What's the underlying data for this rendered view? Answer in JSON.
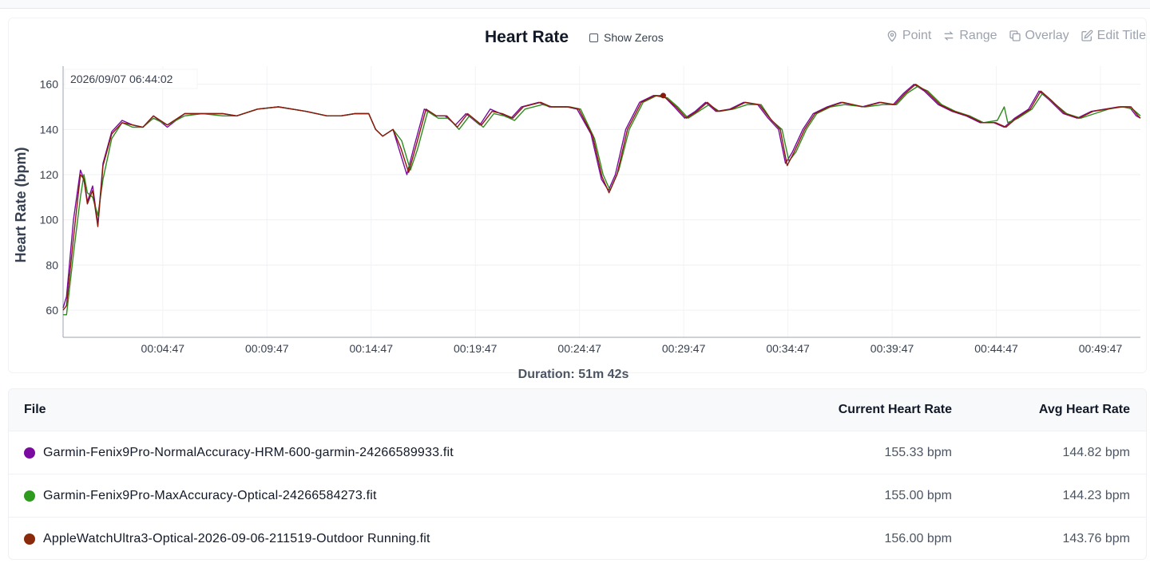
{
  "chart": {
    "title": "Heart Rate",
    "show_zeros_label": "Show Zeros",
    "tools": [
      {
        "label": "Point",
        "icon": "map-pin-icon"
      },
      {
        "label": "Range",
        "icon": "arrows-swap-icon"
      },
      {
        "label": "Overlay",
        "icon": "copy-icon"
      },
      {
        "label": "Edit Title",
        "icon": "pencil-edit-icon"
      }
    ],
    "tooltip": "2026/09/07 06:44:02",
    "duration": "Duration: 51m 42s"
  },
  "chart_data": {
    "type": "line",
    "ylabel": "Heart Rate (bpm)",
    "xlabel": "",
    "ylim": [
      48,
      168
    ],
    "xlim": [
      0,
      3102
    ],
    "yticks": [
      60,
      80,
      100,
      120,
      140,
      160
    ],
    "xticks": [
      {
        "t": 287,
        "label": "00:04:47"
      },
      {
        "t": 587,
        "label": "00:09:47"
      },
      {
        "t": 887,
        "label": "00:14:47"
      },
      {
        "t": 1187,
        "label": "00:19:47"
      },
      {
        "t": 1487,
        "label": "00:24:47"
      },
      {
        "t": 1787,
        "label": "00:29:47"
      },
      {
        "t": 2087,
        "label": "00:34:47"
      },
      {
        "t": 2387,
        "label": "00:39:47"
      },
      {
        "t": 2687,
        "label": "00:44:47"
      },
      {
        "t": 2987,
        "label": "00:49:47"
      }
    ],
    "marker": {
      "t": 1728,
      "y": 155
    },
    "series": [
      {
        "color": "#7a0aa0",
        "points": [
          [
            0,
            61
          ],
          [
            10,
            66
          ],
          [
            30,
            100
          ],
          [
            50,
            122
          ],
          [
            60,
            118
          ],
          [
            70,
            108
          ],
          [
            85,
            115
          ],
          [
            100,
            98
          ],
          [
            115,
            125
          ],
          [
            140,
            139
          ],
          [
            170,
            144
          ],
          [
            200,
            142
          ],
          [
            230,
            141
          ],
          [
            260,
            146
          ],
          [
            300,
            141
          ],
          [
            350,
            147
          ],
          [
            400,
            147
          ],
          [
            460,
            147
          ],
          [
            500,
            146
          ],
          [
            560,
            149
          ],
          [
            620,
            150
          ],
          [
            700,
            148
          ],
          [
            760,
            146
          ],
          [
            800,
            146
          ],
          [
            840,
            147
          ],
          [
            880,
            147
          ],
          [
            900,
            140
          ],
          [
            920,
            137
          ],
          [
            950,
            140
          ],
          [
            970,
            130
          ],
          [
            990,
            120
          ],
          [
            1010,
            132
          ],
          [
            1040,
            149
          ],
          [
            1070,
            146
          ],
          [
            1100,
            146
          ],
          [
            1130,
            142
          ],
          [
            1160,
            147
          ],
          [
            1200,
            142
          ],
          [
            1230,
            149
          ],
          [
            1260,
            147
          ],
          [
            1290,
            145
          ],
          [
            1320,
            150
          ],
          [
            1370,
            152
          ],
          [
            1400,
            150
          ],
          [
            1450,
            150
          ],
          [
            1480,
            149
          ],
          [
            1520,
            138
          ],
          [
            1550,
            118
          ],
          [
            1570,
            113
          ],
          [
            1590,
            120
          ],
          [
            1620,
            140
          ],
          [
            1660,
            152
          ],
          [
            1700,
            155
          ],
          [
            1728,
            155
          ],
          [
            1760,
            150
          ],
          [
            1790,
            145
          ],
          [
            1820,
            148
          ],
          [
            1850,
            152
          ],
          [
            1880,
            148
          ],
          [
            1920,
            149
          ],
          [
            1960,
            152
          ],
          [
            2000,
            151
          ],
          [
            2030,
            145
          ],
          [
            2060,
            140
          ],
          [
            2080,
            125
          ],
          [
            2100,
            130
          ],
          [
            2130,
            140
          ],
          [
            2160,
            147
          ],
          [
            2200,
            150
          ],
          [
            2240,
            152
          ],
          [
            2300,
            150
          ],
          [
            2350,
            152
          ],
          [
            2390,
            151
          ],
          [
            2420,
            156
          ],
          [
            2450,
            160
          ],
          [
            2480,
            157
          ],
          [
            2520,
            151
          ],
          [
            2560,
            148
          ],
          [
            2600,
            146
          ],
          [
            2640,
            143
          ],
          [
            2680,
            143
          ],
          [
            2710,
            141
          ],
          [
            2740,
            145
          ],
          [
            2780,
            149
          ],
          [
            2810,
            157
          ],
          [
            2840,
            153
          ],
          [
            2880,
            147
          ],
          [
            2920,
            145
          ],
          [
            2960,
            148
          ],
          [
            3000,
            149
          ],
          [
            3040,
            150
          ],
          [
            3070,
            150
          ],
          [
            3090,
            146
          ],
          [
            3102,
            145
          ]
        ]
      },
      {
        "color": "#2e8b1e",
        "points": [
          [
            0,
            58
          ],
          [
            10,
            58
          ],
          [
            30,
            85
          ],
          [
            50,
            110
          ],
          [
            60,
            120
          ],
          [
            70,
            112
          ],
          [
            85,
            110
          ],
          [
            100,
            102
          ],
          [
            115,
            118
          ],
          [
            140,
            136
          ],
          [
            170,
            143
          ],
          [
            200,
            141
          ],
          [
            230,
            141
          ],
          [
            260,
            145
          ],
          [
            300,
            142
          ],
          [
            350,
            146
          ],
          [
            400,
            147
          ],
          [
            460,
            146
          ],
          [
            500,
            146
          ],
          [
            560,
            149
          ],
          [
            620,
            150
          ],
          [
            700,
            148
          ],
          [
            760,
            146
          ],
          [
            800,
            146
          ],
          [
            840,
            147
          ],
          [
            880,
            147
          ],
          [
            900,
            140
          ],
          [
            920,
            137
          ],
          [
            950,
            140
          ],
          [
            975,
            135
          ],
          [
            1000,
            122
          ],
          [
            1020,
            131
          ],
          [
            1050,
            148
          ],
          [
            1080,
            145
          ],
          [
            1110,
            145
          ],
          [
            1140,
            140
          ],
          [
            1170,
            146
          ],
          [
            1210,
            141
          ],
          [
            1240,
            147
          ],
          [
            1270,
            146
          ],
          [
            1300,
            144
          ],
          [
            1330,
            149
          ],
          [
            1380,
            151
          ],
          [
            1410,
            150
          ],
          [
            1460,
            150
          ],
          [
            1490,
            149
          ],
          [
            1530,
            136
          ],
          [
            1555,
            120
          ],
          [
            1575,
            113
          ],
          [
            1600,
            122
          ],
          [
            1630,
            140
          ],
          [
            1670,
            152
          ],
          [
            1710,
            155
          ],
          [
            1740,
            154
          ],
          [
            1770,
            150
          ],
          [
            1800,
            145
          ],
          [
            1830,
            148
          ],
          [
            1860,
            151
          ],
          [
            1890,
            148
          ],
          [
            1930,
            149
          ],
          [
            1970,
            151
          ],
          [
            2010,
            151
          ],
          [
            2040,
            144
          ],
          [
            2070,
            140
          ],
          [
            2090,
            126
          ],
          [
            2110,
            130
          ],
          [
            2140,
            140
          ],
          [
            2170,
            147
          ],
          [
            2210,
            150
          ],
          [
            2250,
            151
          ],
          [
            2310,
            150
          ],
          [
            2360,
            151
          ],
          [
            2400,
            151
          ],
          [
            2430,
            156
          ],
          [
            2460,
            159
          ],
          [
            2490,
            157
          ],
          [
            2530,
            151
          ],
          [
            2570,
            148
          ],
          [
            2610,
            146
          ],
          [
            2650,
            143
          ],
          [
            2690,
            144
          ],
          [
            2710,
            150
          ],
          [
            2720,
            143
          ],
          [
            2750,
            145
          ],
          [
            2790,
            149
          ],
          [
            2820,
            156
          ],
          [
            2850,
            152
          ],
          [
            2890,
            147
          ],
          [
            2930,
            145
          ],
          [
            2970,
            147
          ],
          [
            3010,
            149
          ],
          [
            3050,
            150
          ],
          [
            3080,
            149
          ],
          [
            3102,
            146
          ]
        ]
      },
      {
        "color": "#8a1a0a",
        "points": [
          [
            0,
            60
          ],
          [
            10,
            62
          ],
          [
            30,
            92
          ],
          [
            50,
            120
          ],
          [
            60,
            118
          ],
          [
            70,
            107
          ],
          [
            85,
            113
          ],
          [
            100,
            97
          ],
          [
            115,
            124
          ],
          [
            140,
            138
          ],
          [
            170,
            143
          ],
          [
            200,
            142
          ],
          [
            230,
            141
          ],
          [
            260,
            146
          ],
          [
            300,
            142
          ],
          [
            350,
            147
          ],
          [
            400,
            147
          ],
          [
            460,
            147
          ],
          [
            500,
            146
          ],
          [
            560,
            149
          ],
          [
            620,
            150
          ],
          [
            700,
            148
          ],
          [
            760,
            146
          ],
          [
            800,
            146
          ],
          [
            840,
            147
          ],
          [
            880,
            147
          ],
          [
            900,
            140
          ],
          [
            920,
            137
          ],
          [
            950,
            140
          ],
          [
            972,
            132
          ],
          [
            995,
            121
          ],
          [
            1015,
            132
          ],
          [
            1045,
            149
          ],
          [
            1075,
            146
          ],
          [
            1105,
            146
          ],
          [
            1135,
            141
          ],
          [
            1165,
            147
          ],
          [
            1205,
            142
          ],
          [
            1235,
            148
          ],
          [
            1265,
            147
          ],
          [
            1295,
            145
          ],
          [
            1325,
            150
          ],
          [
            1375,
            152
          ],
          [
            1405,
            150
          ],
          [
            1455,
            150
          ],
          [
            1485,
            149
          ],
          [
            1525,
            137
          ],
          [
            1552,
            119
          ],
          [
            1572,
            112
          ],
          [
            1595,
            120
          ],
          [
            1625,
            140
          ],
          [
            1665,
            152
          ],
          [
            1705,
            155
          ],
          [
            1735,
            154
          ],
          [
            1765,
            150
          ],
          [
            1795,
            145
          ],
          [
            1825,
            148
          ],
          [
            1855,
            152
          ],
          [
            1885,
            148
          ],
          [
            1925,
            149
          ],
          [
            1965,
            152
          ],
          [
            2005,
            151
          ],
          [
            2035,
            145
          ],
          [
            2065,
            140
          ],
          [
            2085,
            124
          ],
          [
            2105,
            130
          ],
          [
            2135,
            140
          ],
          [
            2165,
            147
          ],
          [
            2205,
            150
          ],
          [
            2245,
            152
          ],
          [
            2305,
            150
          ],
          [
            2355,
            152
          ],
          [
            2395,
            151
          ],
          [
            2425,
            156
          ],
          [
            2455,
            160
          ],
          [
            2485,
            157
          ],
          [
            2525,
            151
          ],
          [
            2565,
            148
          ],
          [
            2605,
            146
          ],
          [
            2645,
            143
          ],
          [
            2685,
            143
          ],
          [
            2715,
            141
          ],
          [
            2745,
            145
          ],
          [
            2785,
            149
          ],
          [
            2815,
            157
          ],
          [
            2845,
            153
          ],
          [
            2885,
            147
          ],
          [
            2925,
            145
          ],
          [
            2965,
            148
          ],
          [
            3005,
            149
          ],
          [
            3045,
            150
          ],
          [
            3075,
            150
          ],
          [
            3095,
            146
          ],
          [
            3102,
            145
          ]
        ]
      }
    ]
  },
  "table": {
    "headers": {
      "file": "File",
      "current": "Current Heart Rate",
      "avg": "Avg Heart Rate"
    },
    "rows": [
      {
        "color": "#7a0aa0",
        "file": "Garmin-Fenix9Pro-NormalAccuracy-HRM-600-garmin-24266589933.fit",
        "current": "155.33 bpm",
        "avg": "144.82 bpm"
      },
      {
        "color": "#2e9a1e",
        "file": "Garmin-Fenix9Pro-MaxAccuracy-Optical-24266584273.fit",
        "current": "155.00 bpm",
        "avg": "144.23 bpm"
      },
      {
        "color": "#8a2a0a",
        "file": "AppleWatchUltra3-Optical-2026-09-06-211519-Outdoor Running.fit",
        "current": "156.00 bpm",
        "avg": "143.76 bpm"
      }
    ]
  }
}
